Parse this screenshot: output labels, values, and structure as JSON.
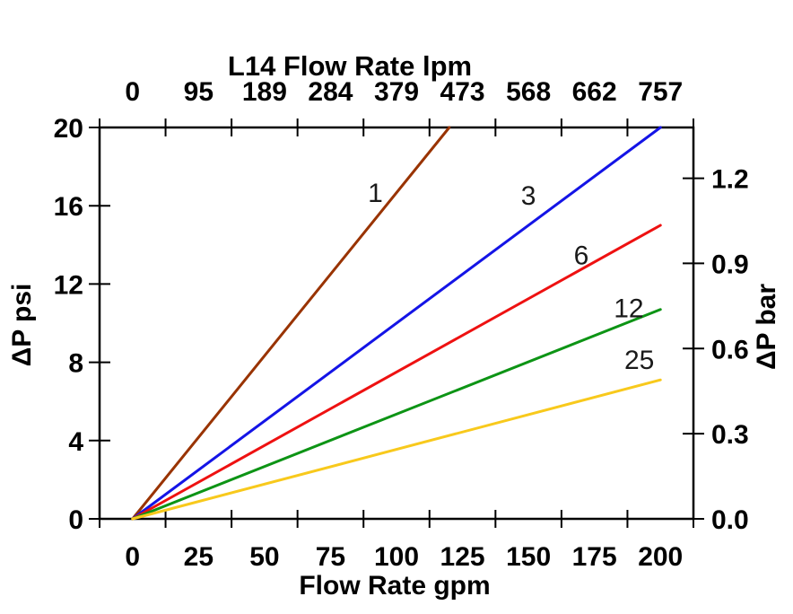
{
  "chart_data": {
    "type": "line",
    "title": "L14 Flow Rate lpm",
    "xlabel_top": "L14 Flow Rate lpm",
    "xlabel_bottom": "Flow Rate gpm",
    "ylabel_left": "ΔP psi",
    "ylabel_right": "ΔP bar",
    "x_range_gpm": [
      0,
      200
    ],
    "y_range_psi": [
      0,
      20
    ],
    "psi_per_bar": 14.5038,
    "grid": false,
    "legend": "inline-line-labels",
    "x_ticks_gpm": [
      0,
      25,
      50,
      75,
      100,
      125,
      150,
      175,
      200
    ],
    "x_tick_labels_gpm": [
      "0",
      "25",
      "50",
      "75",
      "100",
      "125",
      "150",
      "175",
      "200"
    ],
    "x_ticks_lpm": [
      0,
      95,
      189,
      284,
      379,
      473,
      568,
      662,
      757
    ],
    "x_tick_labels_lpm": [
      "0",
      "95",
      "189",
      "284",
      "379",
      "473",
      "568",
      "662",
      "757"
    ],
    "y_ticks_psi": [
      0,
      4,
      8,
      12,
      16,
      20
    ],
    "y_tick_labels_psi": [
      "0",
      "4",
      "8",
      "12",
      "16",
      "20"
    ],
    "y_ticks_bar": [
      0.0,
      0.3,
      0.6,
      0.9,
      1.2
    ],
    "y_tick_labels_bar": [
      "0.0",
      "0.3",
      "0.6",
      "0.9",
      "1.2"
    ],
    "tick_style": "cross-axis, x ticks at category boundaries, labels centered between",
    "series": [
      {
        "label": "1",
        "color": "#993300",
        "points_gpm_psi": [
          [
            0,
            0
          ],
          [
            120,
            20
          ]
        ],
        "label_pos": [
          92,
          16.2
        ]
      },
      {
        "label": "3",
        "color": "#1414e6",
        "points_gpm_psi": [
          [
            0,
            0
          ],
          [
            200,
            20
          ]
        ],
        "label_pos": [
          150,
          16.05
        ]
      },
      {
        "label": "6",
        "color": "#ee1111",
        "points_gpm_psi": [
          [
            0,
            0
          ],
          [
            200,
            15
          ]
        ],
        "label_pos": [
          170,
          13.0
        ]
      },
      {
        "label": "12",
        "color": "#0d9415",
        "points_gpm_psi": [
          [
            0,
            0
          ],
          [
            200,
            10.7
          ]
        ],
        "label_pos": [
          188,
          10.3
        ]
      },
      {
        "label": "25",
        "color": "#f8c91c",
        "points_gpm_psi": [
          [
            0,
            0
          ],
          [
            200,
            7.1
          ]
        ],
        "label_pos": [
          192,
          7.65
        ]
      }
    ]
  }
}
